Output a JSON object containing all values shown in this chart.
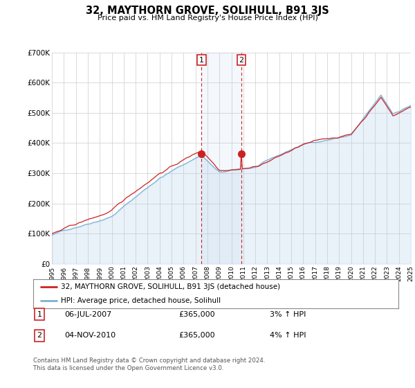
{
  "title": "32, MAYTHORN GROVE, SOLIHULL, B91 3JS",
  "subtitle": "Price paid vs. HM Land Registry's House Price Index (HPI)",
  "legend_line1": "32, MAYTHORN GROVE, SOLIHULL, B91 3JS (detached house)",
  "legend_line2": "HPI: Average price, detached house, Solihull",
  "transaction1_label": "1",
  "transaction1_date": "06-JUL-2007",
  "transaction1_price": "£365,000",
  "transaction1_hpi": "3% ↑ HPI",
  "transaction2_label": "2",
  "transaction2_date": "04-NOV-2010",
  "transaction2_price": "£365,000",
  "transaction2_hpi": "4% ↑ HPI",
  "footer": "Contains HM Land Registry data © Crown copyright and database right 2024.\nThis data is licensed under the Open Government Licence v3.0.",
  "hpi_color": "#a8c8e8",
  "hpi_line_color": "#7ab0d4",
  "price_color": "#cc2222",
  "marker1_year": 2007.5,
  "marker2_year": 2010.83,
  "ylim_min": 0,
  "ylim_max": 700000,
  "background_color": "#ffffff",
  "plot_bg_color": "#ffffff",
  "grid_color": "#cccccc"
}
